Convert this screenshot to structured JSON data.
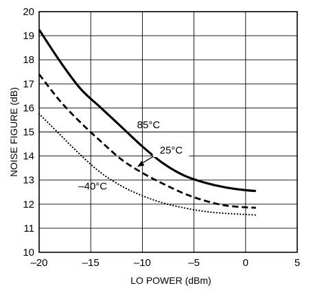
{
  "chart_data": {
    "type": "line",
    "xlabel": "LO POWER (dBm)",
    "ylabel": "NOISE FIGURE (dB)",
    "xlim": [
      -20,
      5
    ],
    "ylim": [
      10,
      20
    ],
    "x_ticks": [
      -20,
      -15,
      -10,
      -5,
      0,
      5
    ],
    "y_ticks": [
      10,
      11,
      12,
      13,
      14,
      15,
      16,
      17,
      18,
      19,
      20
    ],
    "x_tick_labels": [
      "–20",
      "–15",
      "–10",
      "–5",
      "0",
      "5"
    ],
    "y_tick_labels": [
      "10",
      "11",
      "12",
      "13",
      "14",
      "15",
      "16",
      "17",
      "18",
      "19",
      "20"
    ],
    "grid": true,
    "series": [
      {
        "name": "85°C",
        "line_style": "solid",
        "color": "#000000",
        "x": [
          -20,
          -18,
          -16,
          -14,
          -12,
          -10,
          -8,
          -6,
          -4,
          -2,
          0,
          1
        ],
        "y": [
          19.25,
          17.95,
          16.8,
          16.0,
          15.2,
          14.4,
          13.7,
          13.2,
          12.9,
          12.7,
          12.58,
          12.55
        ]
      },
      {
        "name": "25°C",
        "line_style": "dashed",
        "color": "#000000",
        "x": [
          -20,
          -18,
          -16,
          -14,
          -12,
          -10,
          -8,
          -6,
          -4,
          -2,
          0,
          1
        ],
        "y": [
          17.4,
          16.3,
          15.4,
          14.6,
          13.85,
          13.3,
          12.85,
          12.45,
          12.15,
          11.95,
          11.87,
          11.85
        ]
      },
      {
        "name": "–40°C",
        "line_style": "dotted",
        "color": "#000000",
        "x": [
          -20,
          -18,
          -16,
          -14,
          -12,
          -10,
          -8,
          -6,
          -4,
          -2,
          0,
          1
        ],
        "y": [
          15.75,
          14.9,
          14.05,
          13.3,
          12.75,
          12.35,
          12.05,
          11.85,
          11.7,
          11.62,
          11.57,
          11.55
        ]
      }
    ],
    "annotations": [
      {
        "text": "85°C",
        "x": -9.4,
        "y": 15.15
      },
      {
        "text": "25°C",
        "x": -7.2,
        "y": 14.1
      },
      {
        "text": "–40°C",
        "x": -14.8,
        "y": 12.6
      }
    ]
  }
}
